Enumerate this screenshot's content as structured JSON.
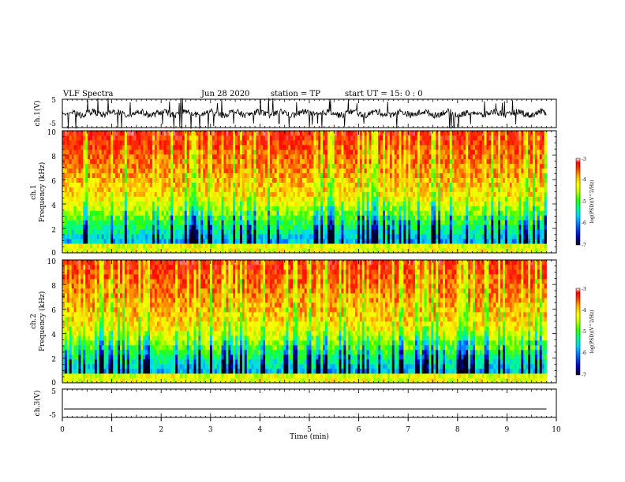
{
  "header": {
    "title": "VLF Spectra",
    "date": "Jun 28 2020",
    "station": "station = TP",
    "start": "start UT =   15: 0  : 0"
  },
  "colorbar_label": "log(PSD)(V^2/Hz)",
  "chart_data": [
    {
      "type": "line",
      "name": "ch1-waveform",
      "ylabel": "ch.1(V)",
      "yticks": [
        "5",
        "-5"
      ],
      "ylim": [
        -5,
        5
      ],
      "xlim": [
        0,
        10
      ],
      "description_values": "noisy waveform centered near 0 V with frequent spikes to ±5 V"
    },
    {
      "type": "heatmap",
      "name": "ch1-spectrogram",
      "ylabel": "ch.1\nFrequency (kHz)",
      "ylabel_lines": [
        "ch.1",
        "Frequency (kHz)"
      ],
      "yticks": [
        "0",
        "2",
        "4",
        "6",
        "8",
        "10"
      ],
      "ylim": [
        0,
        10
      ],
      "xlim": [
        0,
        9.8
      ],
      "colorbar": {
        "ticks": [
          "-3",
          "-4",
          "-5",
          "-6",
          "-7"
        ],
        "range": [
          -7,
          -3
        ]
      }
    },
    {
      "type": "heatmap",
      "name": "ch2-spectrogram",
      "ylabel": "ch.2\nFrequency (kHz)",
      "ylabel_lines": [
        "ch.2",
        "Frequency (kHz)"
      ],
      "yticks": [
        "0",
        "2",
        "4",
        "6",
        "8",
        "10"
      ],
      "ylim": [
        0,
        10
      ],
      "xlim": [
        0,
        9.8
      ],
      "colorbar": {
        "ticks": [
          "-3",
          "-4",
          "-5",
          "-6",
          "-7"
        ],
        "range": [
          -7,
          -3
        ]
      }
    },
    {
      "type": "line",
      "name": "ch3-waveform",
      "ylabel": "ch.3(V)",
      "yticks": [
        "5",
        "-5"
      ],
      "ylim": [
        -5,
        5
      ],
      "xlim": [
        0,
        10
      ],
      "values_constant": -2
    }
  ],
  "xaxis": {
    "label": "Time (min)",
    "ticks": [
      "0",
      "1",
      "2",
      "3",
      "4",
      "5",
      "6",
      "7",
      "8",
      "9",
      "10"
    ],
    "range": [
      0,
      10
    ]
  },
  "colors": {
    "colormap": [
      "#00001e",
      "#0000c8",
      "#0064ff",
      "#00d2ff",
      "#00ff82",
      "#32ff00",
      "#c8ff00",
      "#ffff00",
      "#ffaa00",
      "#ff3c00",
      "#ff0000",
      "#ffffff"
    ]
  }
}
